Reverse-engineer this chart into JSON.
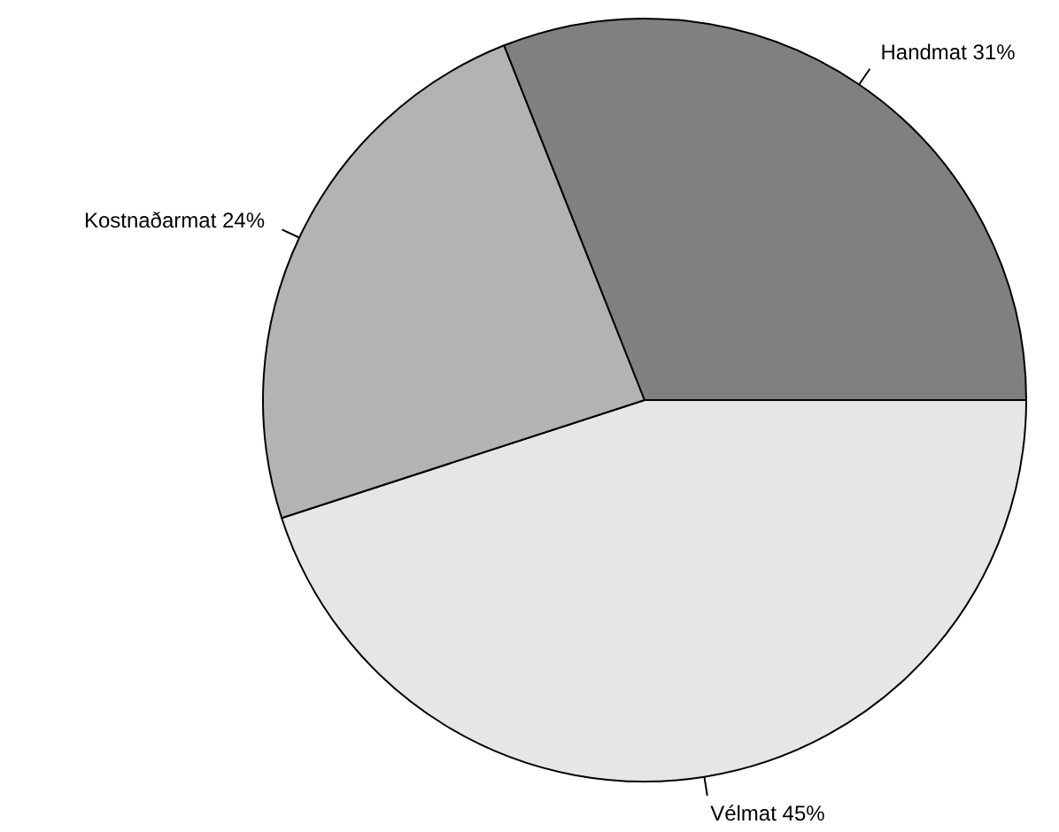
{
  "chart_data": {
    "type": "pie",
    "categories": [
      "Handmat",
      "Kostnaðarmat",
      "Vélmat"
    ],
    "values": [
      31,
      24,
      45
    ],
    "value_labels": [
      "31%",
      "24%",
      "45%"
    ],
    "colors": [
      "#808080",
      "#b3b3b3",
      "#e6e6e6"
    ]
  }
}
